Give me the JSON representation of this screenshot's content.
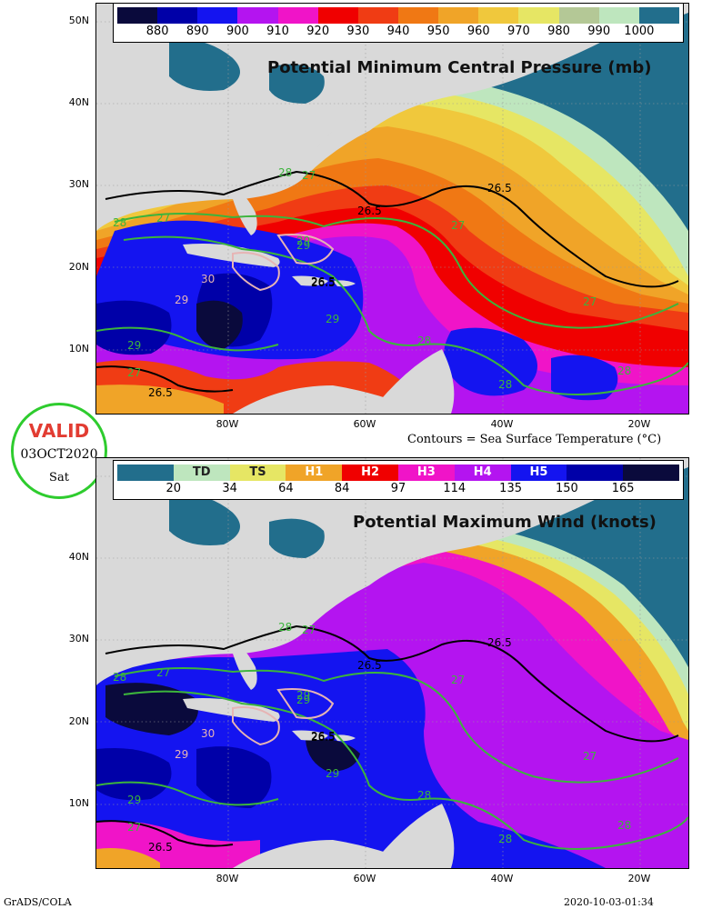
{
  "panel_top": {
    "title": "Potential Minimum Central Pressure (mb)",
    "colorbar": {
      "colors": [
        "#0a0a3c",
        "#0000a8",
        "#1414f0",
        "#b414f0",
        "#f014c8",
        "#f00000",
        "#f03c14",
        "#f07814",
        "#f0a428",
        "#f0c83c",
        "#e6e664",
        "#b4c896",
        "#bee6be",
        "#226e8c"
      ],
      "labels": [
        "880",
        "890",
        "900",
        "910",
        "920",
        "930",
        "940",
        "950",
        "960",
        "970",
        "980",
        "990",
        "1000"
      ]
    },
    "caption": "Contours = Sea Surface Temperature (°C)"
  },
  "panel_bottom": {
    "title": "Potential Maximum Wind (knots)",
    "colorbar": {
      "colors": [
        "#226e8c",
        "#bee6be",
        "#e6e664",
        "#f0a428",
        "#f00000",
        "#f014c8",
        "#b414f0",
        "#1414f0",
        "#0000a8",
        "#0a0a3c"
      ],
      "categories": [
        "",
        "TD",
        "TS",
        "H1",
        "H2",
        "H3",
        "H4",
        "H5",
        "",
        ""
      ],
      "labels": [
        "20",
        "34",
        "64",
        "84",
        "97",
        "114",
        "135",
        "150",
        "165"
      ]
    }
  },
  "axes": {
    "lat_labels": [
      "50N",
      "40N",
      "30N",
      "20N",
      "10N"
    ],
    "lon_labels": [
      "80W",
      "60W",
      "40W",
      "20W"
    ]
  },
  "contours": {
    "sst_labels_top": [
      "28",
      "27",
      "27",
      "28",
      "29",
      "30",
      "29",
      "29",
      "27",
      "26.5",
      "26.5",
      "26.5",
      "29",
      "26.5",
      "28",
      "28",
      "27",
      "28",
      "29",
      "27",
      "26.5"
    ],
    "sst_labels_bottom": [
      "28",
      "27",
      "27",
      "28",
      "29",
      "30",
      "29",
      "29",
      "27",
      "26.5",
      "26.5",
      "26.5",
      "29",
      "26.5",
      "28",
      "28",
      "27",
      "28",
      "29",
      "27",
      "26.5"
    ]
  },
  "valid": {
    "text": "VALID",
    "date": "03OCT2020",
    "day": "Sat"
  },
  "footer": {
    "left": "GrADS/COLA",
    "right": "2020-10-03-01:34"
  }
}
